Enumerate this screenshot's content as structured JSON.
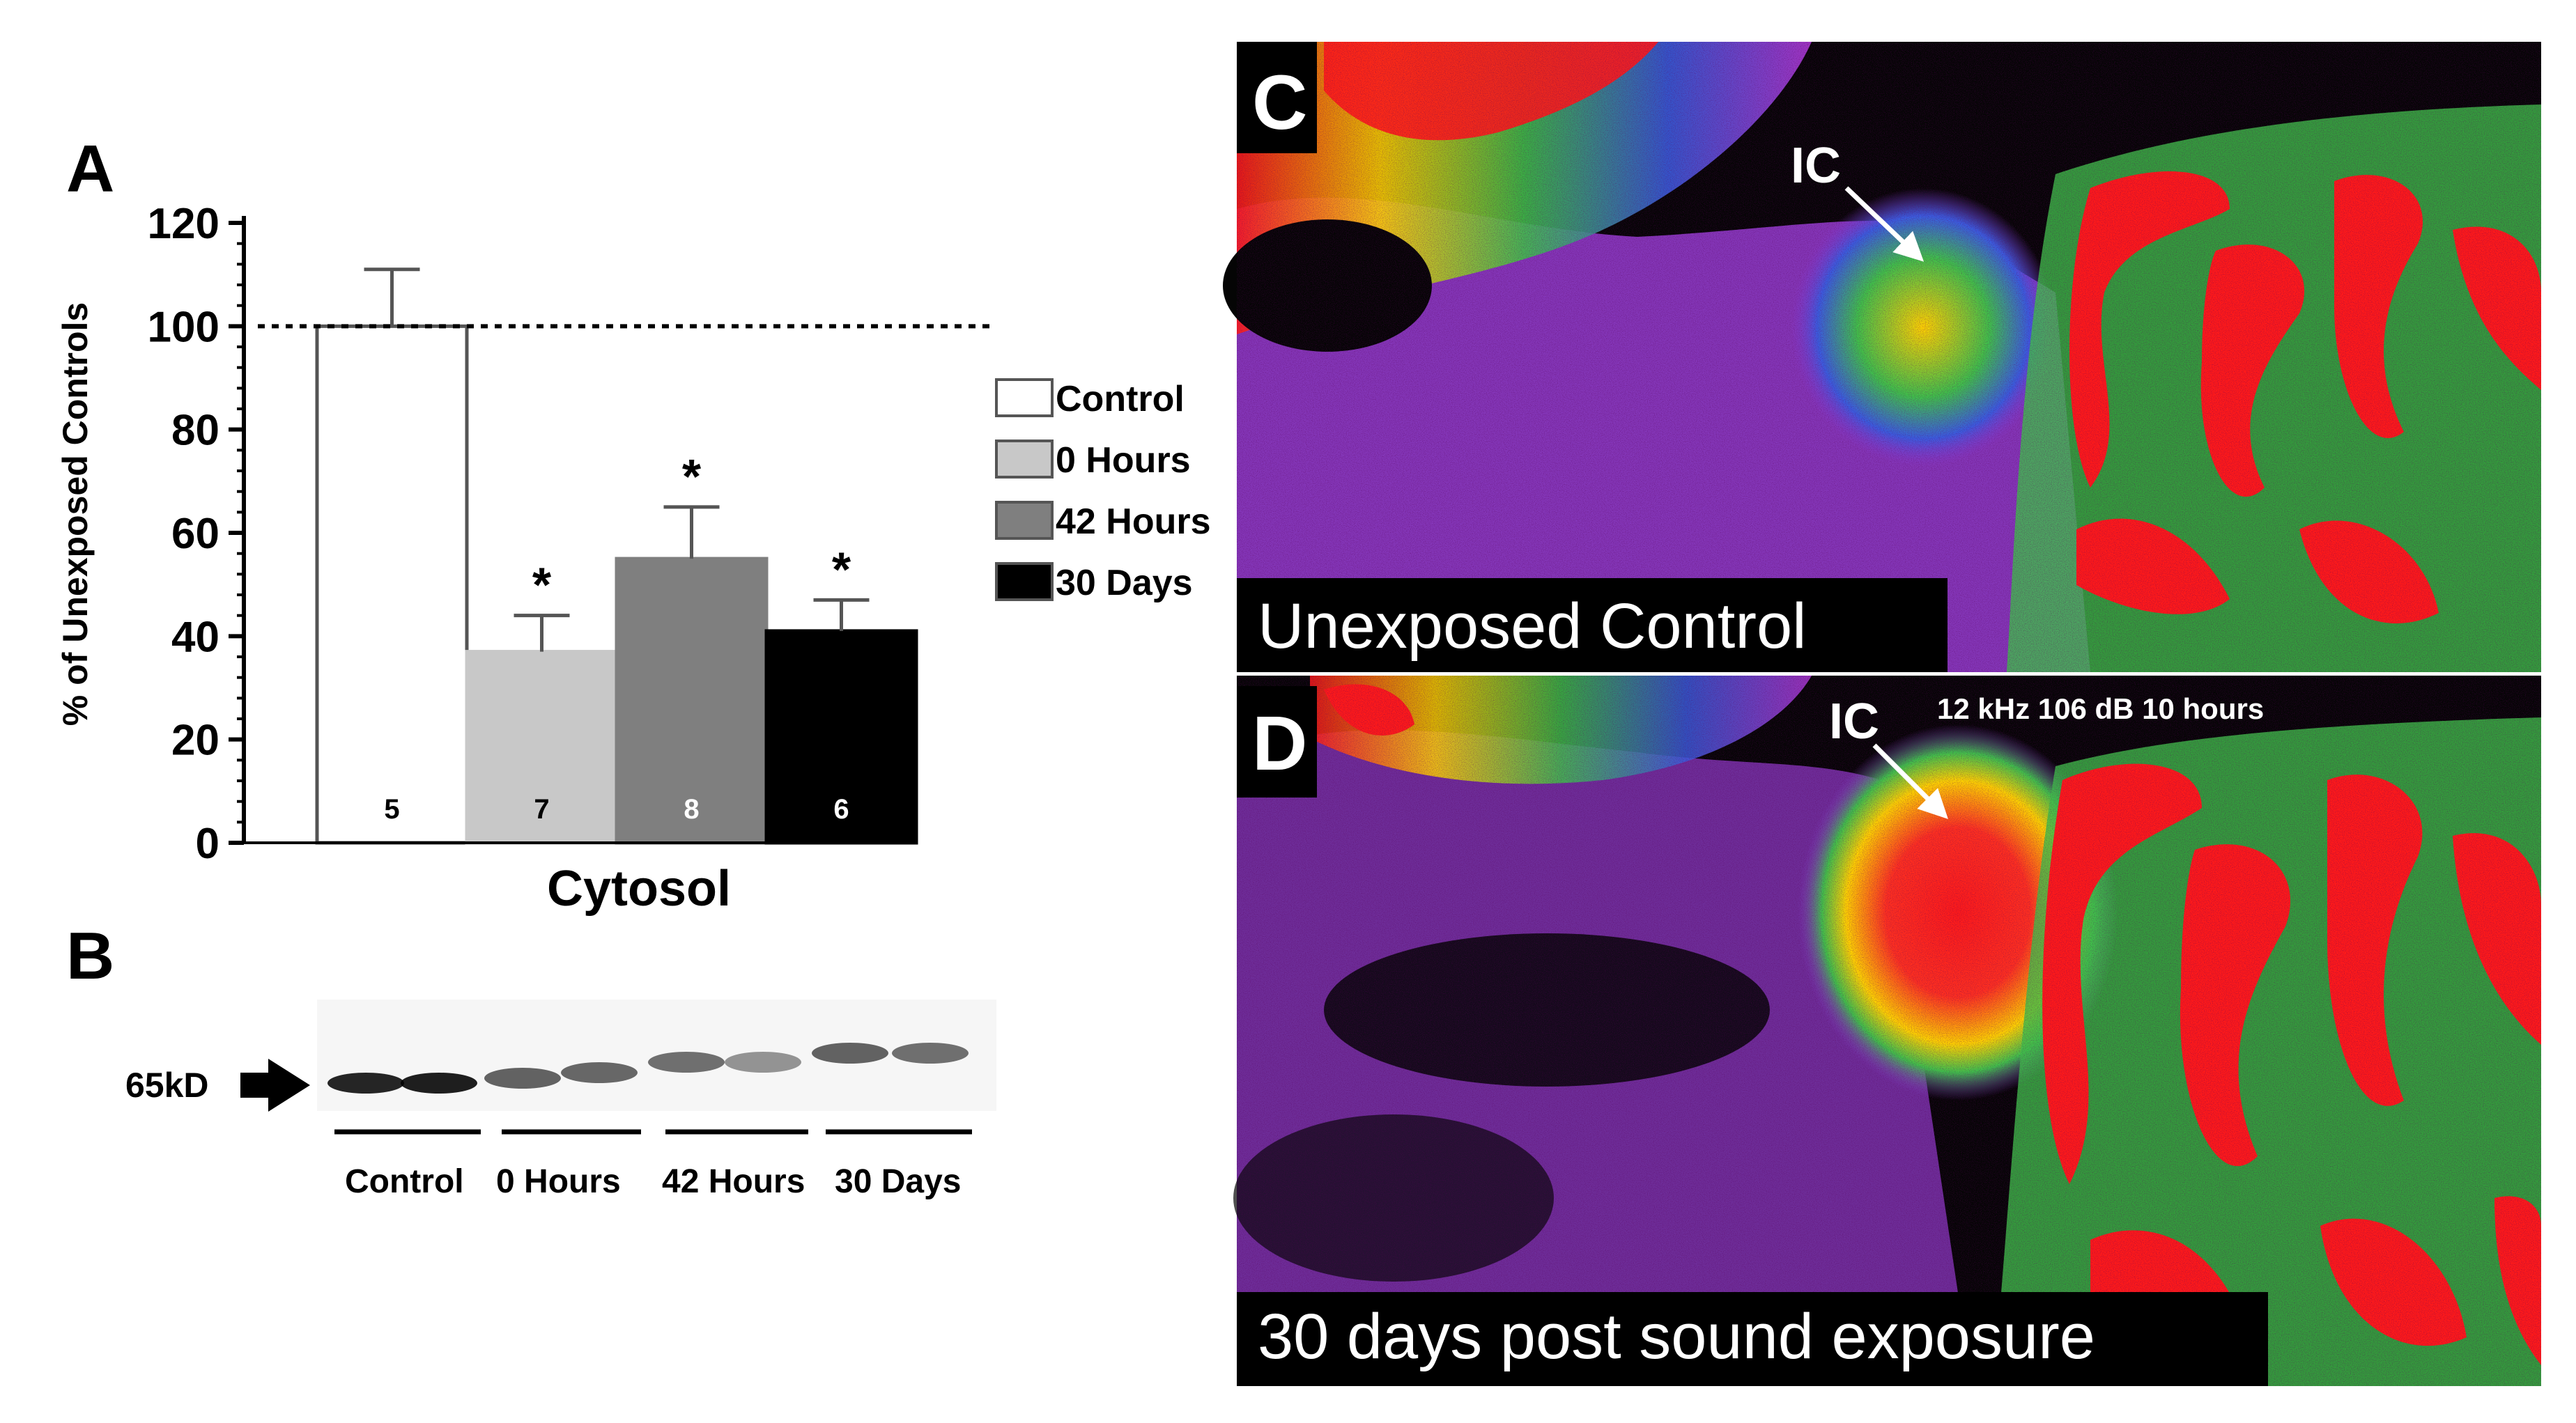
{
  "panels": {
    "a_letter": "A",
    "b_letter": "B",
    "c_letter": "C",
    "d_letter": "D"
  },
  "chart_data": {
    "type": "bar",
    "categories": [
      "Control",
      "0 Hours",
      "42 Hours",
      "30 Days"
    ],
    "values": [
      100,
      37,
      55,
      41
    ],
    "errors": [
      11,
      7,
      10,
      6
    ],
    "n_labels": [
      "5",
      "7",
      "8",
      "6"
    ],
    "significance": [
      "",
      "*",
      "*",
      "*"
    ],
    "bar_colors": [
      "#ffffff",
      "#c8c8c8",
      "#7f7f7f",
      "#000000"
    ],
    "n_label_colors": [
      "#000000",
      "#000000",
      "#ffffff",
      "#ffffff"
    ],
    "xlabel": "Cytosol",
    "ylabel": "% of Unexposed Controls",
    "ylim": [
      0,
      120
    ],
    "yticks": [
      "0",
      "20",
      "40",
      "60",
      "80",
      "100",
      "120"
    ],
    "reference_line": 100,
    "legend": [
      "Control",
      "0 Hours",
      "42 Hours",
      "30 Days"
    ],
    "legend_position": "right"
  },
  "western_blot": {
    "marker_label": "65kD",
    "lane_groups": [
      "Control",
      "0 Hours",
      "42 Hours",
      "30 Days"
    ],
    "band_intensity": [
      0.85,
      0.88,
      0.6,
      0.58,
      0.55,
      0.4,
      0.6,
      0.55
    ]
  },
  "panel_c": {
    "caption": "Unexposed Control",
    "region_label": "IC"
  },
  "panel_d": {
    "caption": "30 days post sound exposure",
    "region_label": "IC",
    "exposure_label": "12 kHz 106 dB 10 hours"
  }
}
